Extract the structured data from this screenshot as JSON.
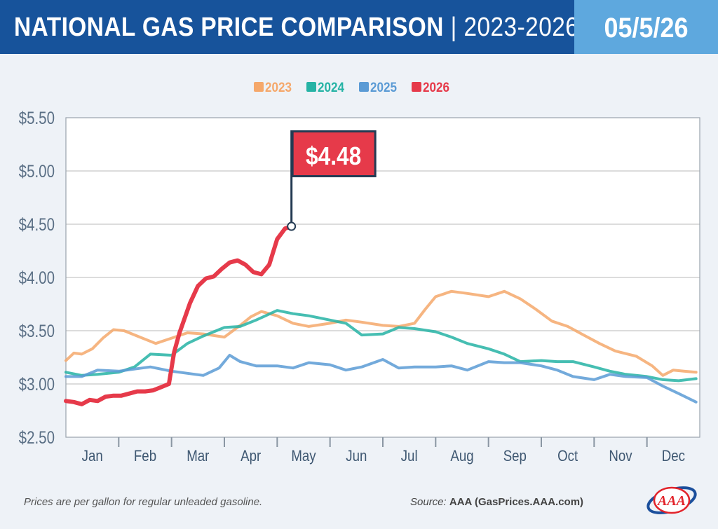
{
  "header": {
    "title_main": "NATIONAL GAS PRICE COMPARISON",
    "title_range": "| 2023-2026",
    "date": "05/5/26"
  },
  "footer": {
    "note": "Prices are per gallon for regular unleaded gasoline.",
    "source_label": "Source:",
    "source_value": "AAA (GasPrices.AAA.com)",
    "logo_text": "AAA"
  },
  "chart_data": {
    "type": "line",
    "ylabel": "",
    "xlabel": "",
    "ylim": [
      2.5,
      5.5
    ],
    "y_ticks": [
      "$2.50",
      "$3.00",
      "$3.50",
      "$4.00",
      "$4.50",
      "$5.00",
      "$5.50"
    ],
    "y_tick_values": [
      2.5,
      3.0,
      3.5,
      4.0,
      4.5,
      5.0,
      5.5
    ],
    "x_range": [
      0,
      12
    ],
    "months": [
      "Jan",
      "Feb",
      "Mar",
      "Apr",
      "May",
      "Jun",
      "Jul",
      "Aug",
      "Sep",
      "Oct",
      "Nov",
      "Dec"
    ],
    "legend_position": "top-center",
    "grid": true,
    "series": [
      {
        "name": "2023",
        "color": "#f5a86b",
        "x": [
          0.0,
          0.15,
          0.3,
          0.5,
          0.7,
          0.9,
          1.1,
          1.4,
          1.7,
          2.0,
          2.3,
          2.6,
          3.0,
          3.3,
          3.5,
          3.7,
          4.0,
          4.3,
          4.6,
          5.0,
          5.3,
          5.6,
          6.0,
          6.3,
          6.6,
          6.8,
          7.0,
          7.3,
          7.6,
          8.0,
          8.3,
          8.6,
          8.9,
          9.2,
          9.5,
          9.8,
          10.1,
          10.4,
          10.8,
          11.1,
          11.3,
          11.5,
          11.7,
          11.93
        ],
        "y": [
          3.22,
          3.29,
          3.28,
          3.33,
          3.43,
          3.51,
          3.5,
          3.44,
          3.38,
          3.43,
          3.48,
          3.47,
          3.44,
          3.55,
          3.63,
          3.68,
          3.64,
          3.57,
          3.54,
          3.57,
          3.6,
          3.58,
          3.55,
          3.54,
          3.57,
          3.7,
          3.82,
          3.87,
          3.85,
          3.82,
          3.87,
          3.8,
          3.7,
          3.59,
          3.54,
          3.46,
          3.38,
          3.31,
          3.26,
          3.17,
          3.08,
          3.13,
          3.12,
          3.11
        ]
      },
      {
        "name": "2024",
        "color": "#26b3a5",
        "x": [
          0.0,
          0.3,
          0.6,
          1.0,
          1.3,
          1.6,
          2.0,
          2.3,
          2.6,
          3.0,
          3.3,
          3.6,
          4.0,
          4.3,
          4.6,
          5.0,
          5.3,
          5.6,
          6.0,
          6.3,
          6.6,
          7.0,
          7.3,
          7.6,
          8.0,
          8.3,
          8.6,
          9.0,
          9.3,
          9.6,
          10.0,
          10.3,
          10.6,
          11.0,
          11.3,
          11.6,
          11.93
        ],
        "y": [
          3.11,
          3.08,
          3.09,
          3.11,
          3.16,
          3.28,
          3.27,
          3.38,
          3.45,
          3.53,
          3.54,
          3.6,
          3.69,
          3.66,
          3.64,
          3.6,
          3.57,
          3.46,
          3.47,
          3.53,
          3.52,
          3.49,
          3.44,
          3.38,
          3.33,
          3.28,
          3.21,
          3.22,
          3.21,
          3.21,
          3.16,
          3.12,
          3.09,
          3.07,
          3.04,
          3.03,
          3.05
        ]
      },
      {
        "name": "2025",
        "color": "#5b9bd5",
        "x": [
          0.0,
          0.3,
          0.6,
          1.0,
          1.3,
          1.6,
          2.0,
          2.3,
          2.6,
          2.9,
          3.1,
          3.3,
          3.6,
          4.0,
          4.3,
          4.6,
          5.0,
          5.3,
          5.6,
          6.0,
          6.3,
          6.6,
          7.0,
          7.3,
          7.6,
          8.0,
          8.3,
          8.6,
          9.0,
          9.3,
          9.6,
          10.0,
          10.3,
          10.6,
          11.0,
          11.3,
          11.6,
          11.93
        ],
        "y": [
          3.07,
          3.07,
          3.13,
          3.12,
          3.14,
          3.16,
          3.12,
          3.1,
          3.08,
          3.15,
          3.27,
          3.21,
          3.17,
          3.17,
          3.15,
          3.2,
          3.18,
          3.13,
          3.16,
          3.23,
          3.15,
          3.16,
          3.16,
          3.17,
          3.13,
          3.21,
          3.2,
          3.2,
          3.17,
          3.13,
          3.07,
          3.04,
          3.09,
          3.07,
          3.06,
          2.98,
          2.91,
          2.83
        ]
      },
      {
        "name": "2026",
        "color": "#e63a4a",
        "highlight": true,
        "x": [
          0.0,
          0.15,
          0.3,
          0.45,
          0.6,
          0.75,
          0.9,
          1.05,
          1.2,
          1.35,
          1.5,
          1.65,
          1.8,
          1.95,
          2.05,
          2.15,
          2.25,
          2.35,
          2.5,
          2.65,
          2.8,
          2.95,
          3.1,
          3.25,
          3.4,
          3.55,
          3.7,
          3.85,
          4.0,
          4.15,
          4.27
        ],
        "y": [
          2.84,
          2.83,
          2.81,
          2.85,
          2.84,
          2.88,
          2.89,
          2.89,
          2.91,
          2.93,
          2.93,
          2.94,
          2.97,
          3.0,
          3.3,
          3.48,
          3.62,
          3.76,
          3.92,
          3.99,
          4.01,
          4.08,
          4.14,
          4.16,
          4.12,
          4.05,
          4.03,
          4.12,
          4.36,
          4.46,
          4.48
        ]
      }
    ],
    "annotation": {
      "label": "$4.48",
      "series": "2026",
      "x": 4.27,
      "y": 4.48
    }
  }
}
